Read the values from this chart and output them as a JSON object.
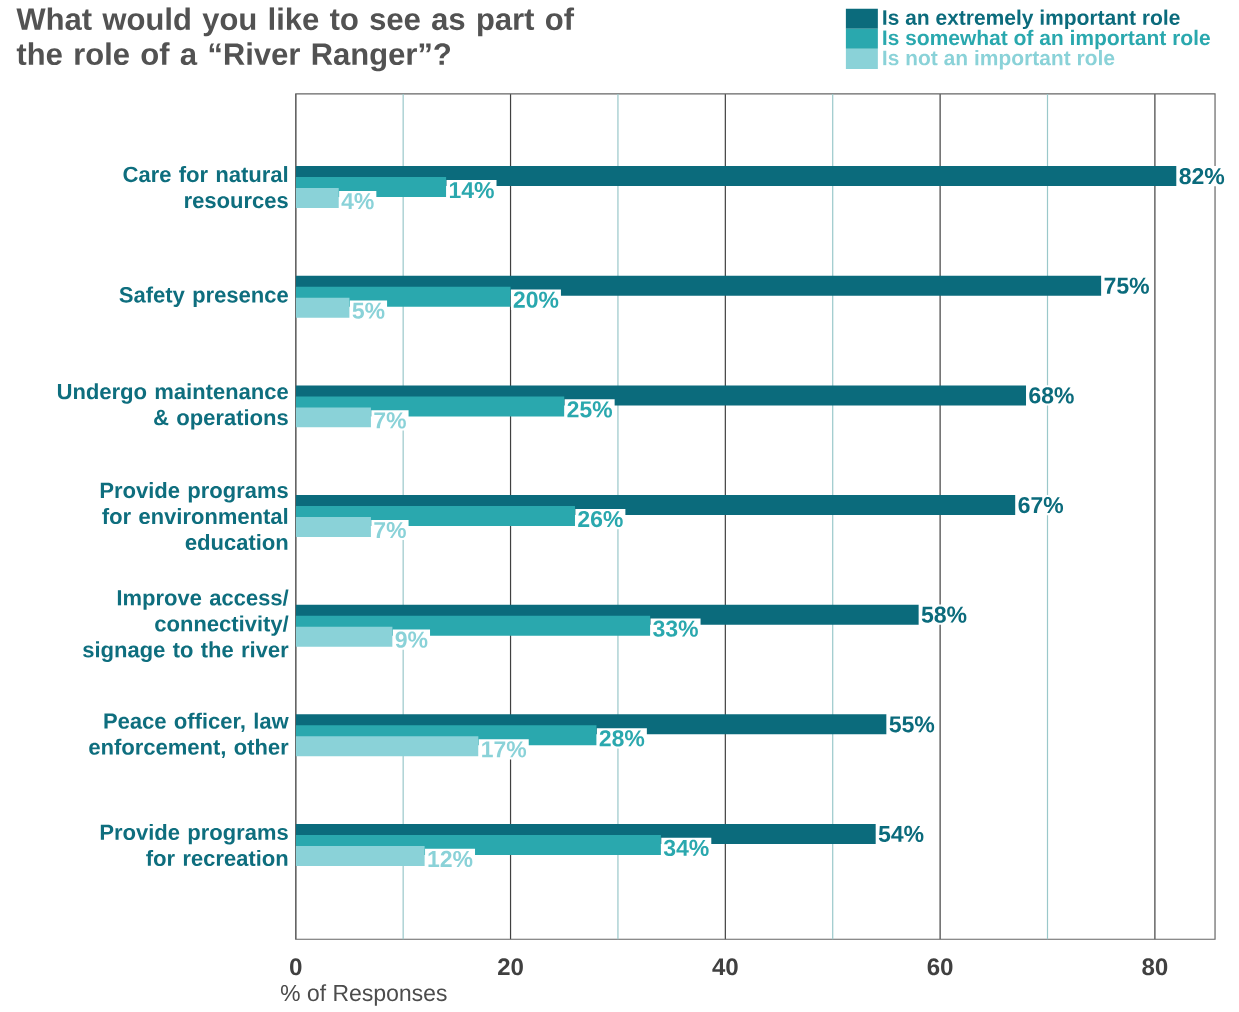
{
  "chart_data": {
    "type": "bar",
    "orientation": "horizontal",
    "title": "What would you like to see as part of the role of a “River Ranger”?",
    "xlabel": "% of Responses",
    "categories": [
      "Care for natural resources",
      "Safety presence",
      "Undergo maintenance & operations",
      "Provide programs for environmental education",
      "Improve access/ connectivity/ signage to the river",
      "Peace officer, law enforcement, other",
      "Provide programs for recreation"
    ],
    "series": [
      {
        "name": "Is an extremely important role",
        "color": "#0b6b7c",
        "values": [
          82,
          75,
          68,
          67,
          58,
          55,
          54
        ],
        "value_labels": [
          "82%",
          "75%",
          "68%",
          "67%",
          "58%",
          "55%",
          "54%"
        ]
      },
      {
        "name": "Is somewhat of an important role",
        "color": "#2aa8ae",
        "values": [
          14,
          20,
          25,
          26,
          33,
          28,
          34
        ],
        "value_labels": [
          "14%",
          "20%",
          "25%",
          "26%",
          "33%",
          "28%",
          "34%"
        ]
      },
      {
        "name": "Is not an important role",
        "color": "#8ad2d8",
        "values": [
          4,
          5,
          7,
          7,
          9,
          17,
          12
        ],
        "value_labels": [
          "4%",
          "5%",
          "7%",
          "7%",
          "9%",
          "17%",
          "12%"
        ]
      }
    ],
    "xlim": [
      0,
      85.6
    ],
    "xticks": [
      0,
      {
        "value": 10,
        "label": null
      },
      20,
      {
        "value": 30,
        "label": null
      },
      40,
      {
        "value": 50,
        "label": null
      },
      60,
      {
        "value": 70,
        "label": null
      },
      80
    ],
    "grid": "x",
    "legend": "top right"
  }
}
